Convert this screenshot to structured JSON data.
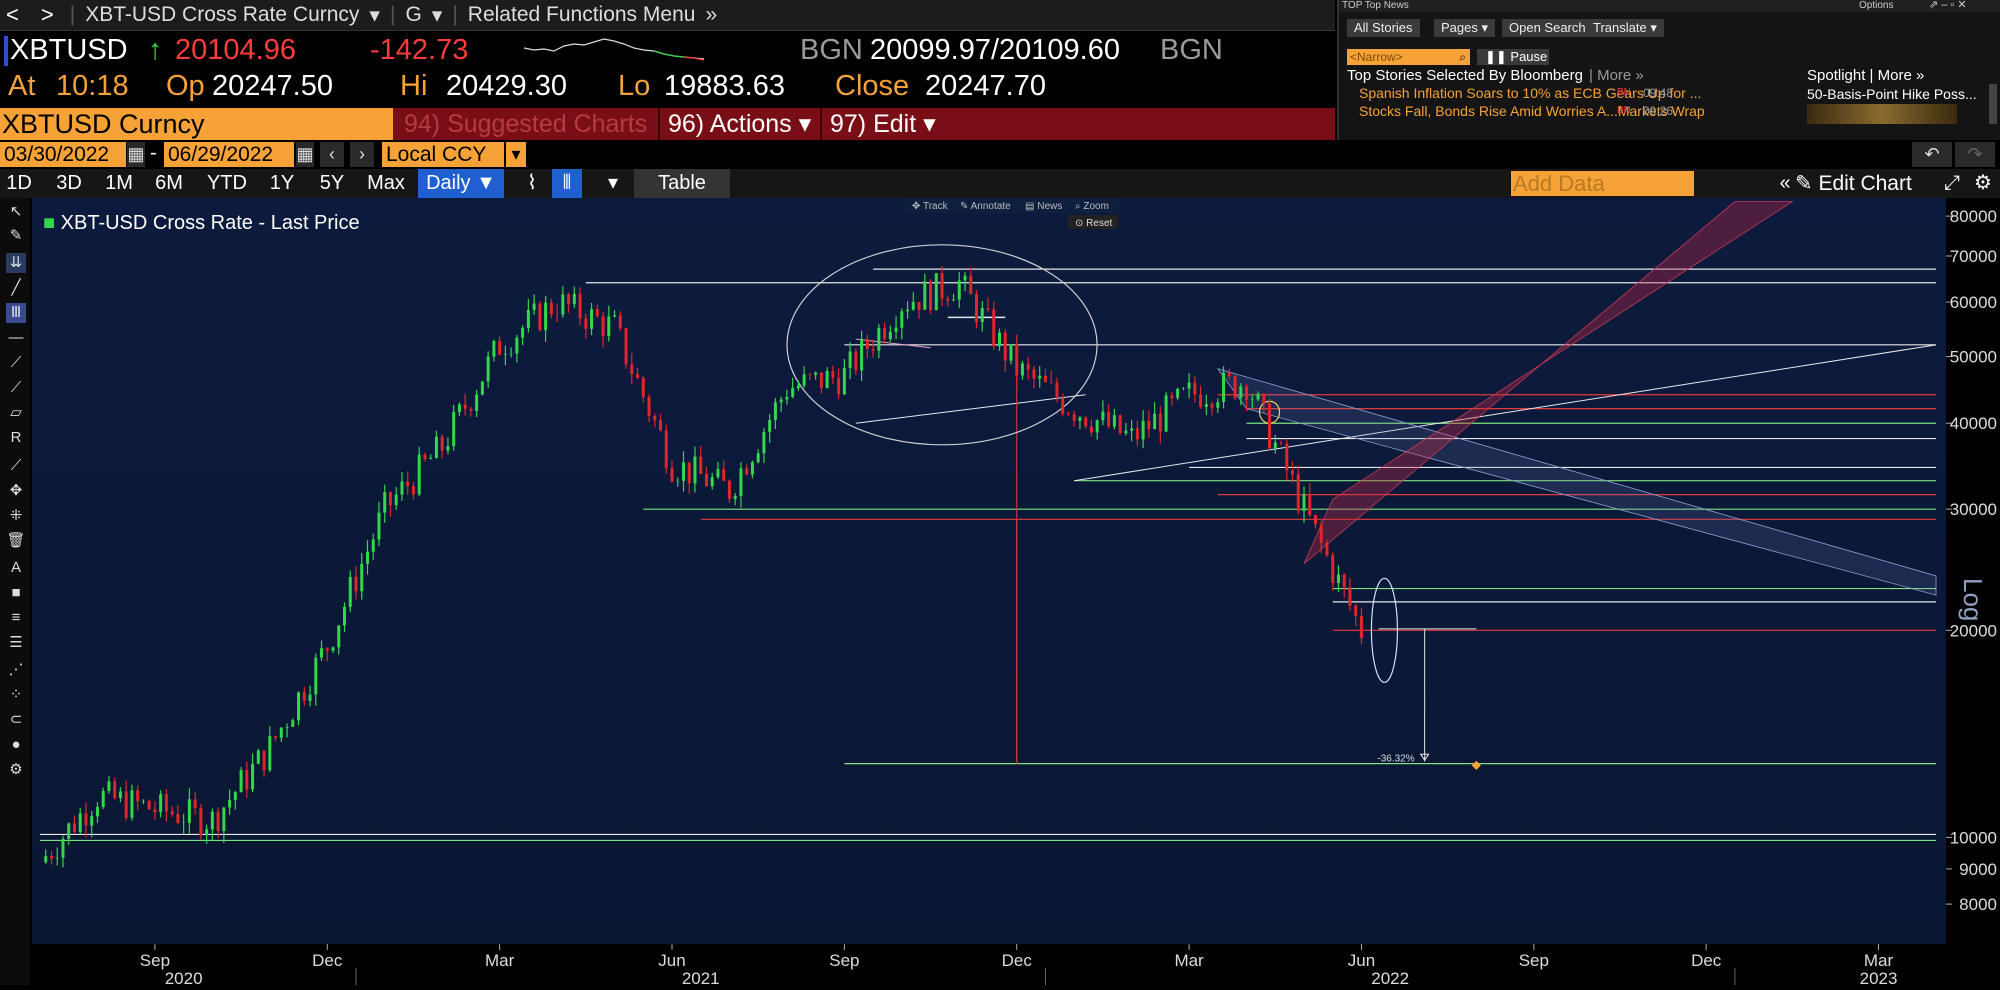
{
  "header": {
    "nav_back": "<",
    "nav_fwd": ">",
    "security_desc": "XBT-USD Cross Rate Curncy",
    "g_menu": "G",
    "related": "Related Functions Menu"
  },
  "quote": {
    "ticker": "XBTUSD",
    "arrow": "↑",
    "last": "20104.96",
    "change": "-142.73",
    "source1": "BGN",
    "bid_ask": "20099.97/20109.60",
    "source2": "BGN",
    "at_label": "At",
    "at_time": "10:18",
    "op_label": "Op",
    "open": "20247.50",
    "hi_label": "Hi",
    "high": "20429.30",
    "lo_label": "Lo",
    "low": "19883.63",
    "close_label": "Close",
    "close": "20247.70"
  },
  "security_bar": {
    "name": "XBTUSD Curncy",
    "suggested": "94) Suggested Charts",
    "actions": "96) Actions ▾",
    "edit": "97) Edit ▾"
  },
  "date_range": {
    "start": "03/30/2022",
    "dash": "-",
    "end": "06/29/2022",
    "currency": "Local CCY"
  },
  "range_buttons": [
    "1D",
    "3D",
    "1M",
    "6M",
    "YTD",
    "1Y",
    "5Y",
    "Max"
  ],
  "period": "Daily ▼",
  "table_label": "Table",
  "add_data_placeholder": "Add Data",
  "edit_chart": "Edit Chart",
  "news": {
    "header": "TOP Top News",
    "options": "Options",
    "all_stories": "All Stories",
    "pages": "Pages",
    "open_search": "Open Search",
    "translate": "Translate",
    "narrow": "<Narrow>",
    "pause": "Pause",
    "top_title": "Top Stories Selected By Bloomberg",
    "more": "More »",
    "headline1": "Spanish Inflation Soars to 10% as ECB Gears Up for ...",
    "src1": "BN",
    "time1": "09:48",
    "headline2": "Stocks Fall, Bonds Rise Amid Worries A...Markets Wrap",
    "src2": "BN",
    "time2": "09:26",
    "spotlight": "Spotlight | More »",
    "spot_headline": "50-Basis-Point Hike Poss..."
  },
  "chart_toolbar": {
    "track": "Track",
    "annotate": "Annotate",
    "news": "News",
    "zoom": "Zoom",
    "reset": "Reset"
  },
  "chart_data": {
    "type": "line",
    "title": "XBT-USD Cross Rate - Last Price",
    "scale": "Log",
    "ylim": [
      7000,
      85000
    ],
    "y_ticks": [
      80000,
      70000,
      60000,
      50000,
      40000,
      30000,
      20000,
      10000,
      9000,
      8000
    ],
    "y_tick_labels": [
      "80000",
      "70000",
      "60000",
      "50000",
      "40000",
      "30000",
      "20000",
      "10000",
      "9000",
      "8000"
    ],
    "x_ticks": [
      "Sep",
      "Dec",
      "Mar",
      "Jun",
      "Sep",
      "Dec",
      "Mar",
      "Jun",
      "Sep",
      "Dec",
      "Mar"
    ],
    "x_years": [
      "2020",
      "2021",
      "2022",
      "2023"
    ],
    "annotation_pct": "-36.32%",
    "annotation_level": "12803.38",
    "x": [
      "2020-07",
      "2020-08",
      "2020-09",
      "2020-10",
      "2020-11",
      "2020-12",
      "2021-01",
      "2021-02",
      "2021-03",
      "2021-04",
      "2021-05",
      "2021-06",
      "2021-07",
      "2021-08",
      "2021-09",
      "2021-10",
      "2021-11",
      "2021-12",
      "2022-01",
      "2022-02",
      "2022-03",
      "2022-04",
      "2022-05",
      "2022-06"
    ],
    "series": [
      {
        "values": [
          9200,
          11500,
          11000,
          10600,
          13500,
          19000,
          30000,
          37000,
          52000,
          60000,
          55000,
          35000,
          32000,
          45000,
          47000,
          60000,
          64000,
          48000,
          42000,
          38000,
          44000,
          46000,
          30000,
          20000
        ]
      }
    ]
  }
}
